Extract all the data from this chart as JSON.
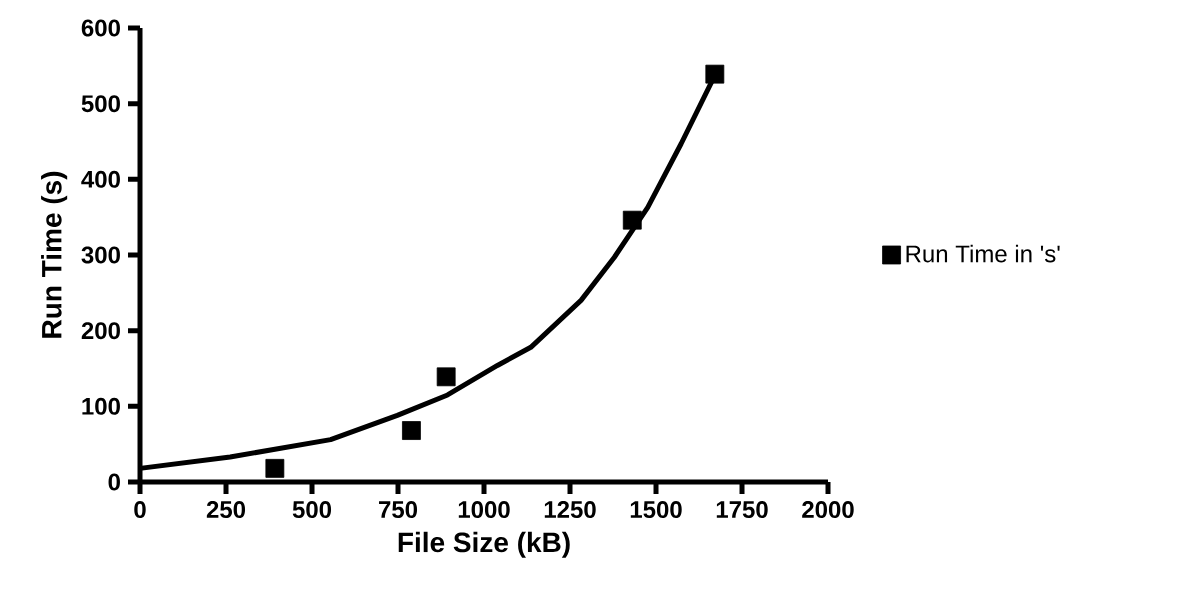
{
  "chart_data": {
    "type": "scatter",
    "xlabel": "File Size (kB)",
    "ylabel": "Run Time (s)",
    "xlim": [
      0,
      2000
    ],
    "ylim": [
      0,
      600
    ],
    "xticks": [
      0,
      250,
      500,
      750,
      1000,
      1250,
      1500,
      1750,
      2000
    ],
    "yticks": [
      0,
      100,
      200,
      300,
      400,
      500,
      600
    ],
    "legend": "right",
    "marker": "square",
    "series": [
      {
        "name": "Run Time in 's'",
        "color": "#000000",
        "x": [
          392,
          789,
          890,
          1431,
          1671
        ],
        "values": [
          18,
          68,
          139,
          346,
          539
        ]
      },
      {
        "type": "line",
        "marker": "none",
        "color": "#000000",
        "x": [
          0,
          262,
          554,
          748,
          894,
          1039,
          1136,
          1282,
          1379,
          1476,
          1573,
          1661,
          1671
        ],
        "values": [
          18,
          33,
          56,
          88,
          115,
          154,
          178,
          240,
          297,
          363,
          447,
          528,
          535
        ]
      }
    ]
  }
}
